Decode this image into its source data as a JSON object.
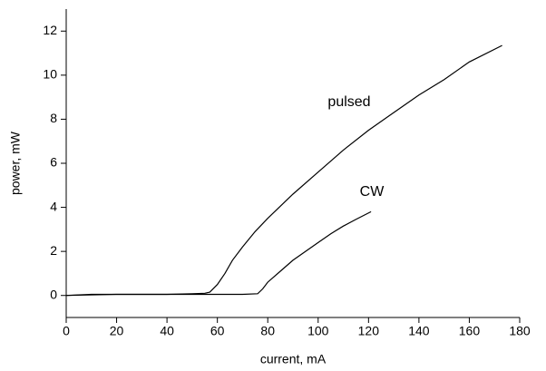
{
  "chart_data": {
    "type": "line",
    "xlabel": "current, mA",
    "ylabel": "power, mW",
    "xlim": [
      0,
      180
    ],
    "xticks": [
      0,
      20,
      40,
      60,
      80,
      100,
      120,
      140,
      160,
      180
    ],
    "ylim": [
      -1,
      13
    ],
    "yticks": [
      0,
      2,
      4,
      6,
      8,
      10,
      12
    ],
    "annotations": [
      "pulsed",
      "CW"
    ],
    "series": [
      {
        "name": "pulsed",
        "color": "#000000",
        "x": [
          0,
          10,
          20,
          30,
          40,
          50,
          55,
          57,
          60,
          63,
          66,
          70,
          75,
          80,
          90,
          100,
          110,
          120,
          130,
          140,
          150,
          160,
          173
        ],
        "values": [
          0.0,
          0.05,
          0.05,
          0.05,
          0.05,
          0.08,
          0.1,
          0.15,
          0.5,
          1.0,
          1.6,
          2.2,
          2.9,
          3.5,
          4.6,
          5.6,
          6.6,
          7.5,
          8.3,
          9.1,
          9.8,
          10.6,
          11.35
        ]
      },
      {
        "name": "CW",
        "color": "#000000",
        "x": [
          0,
          20,
          40,
          60,
          70,
          76,
          78,
          80,
          85,
          90,
          95,
          100,
          105,
          110,
          115,
          121
        ],
        "values": [
          0.0,
          0.05,
          0.05,
          0.05,
          0.05,
          0.08,
          0.3,
          0.6,
          1.1,
          1.6,
          2.0,
          2.4,
          2.8,
          3.15,
          3.45,
          3.8
        ]
      }
    ]
  }
}
